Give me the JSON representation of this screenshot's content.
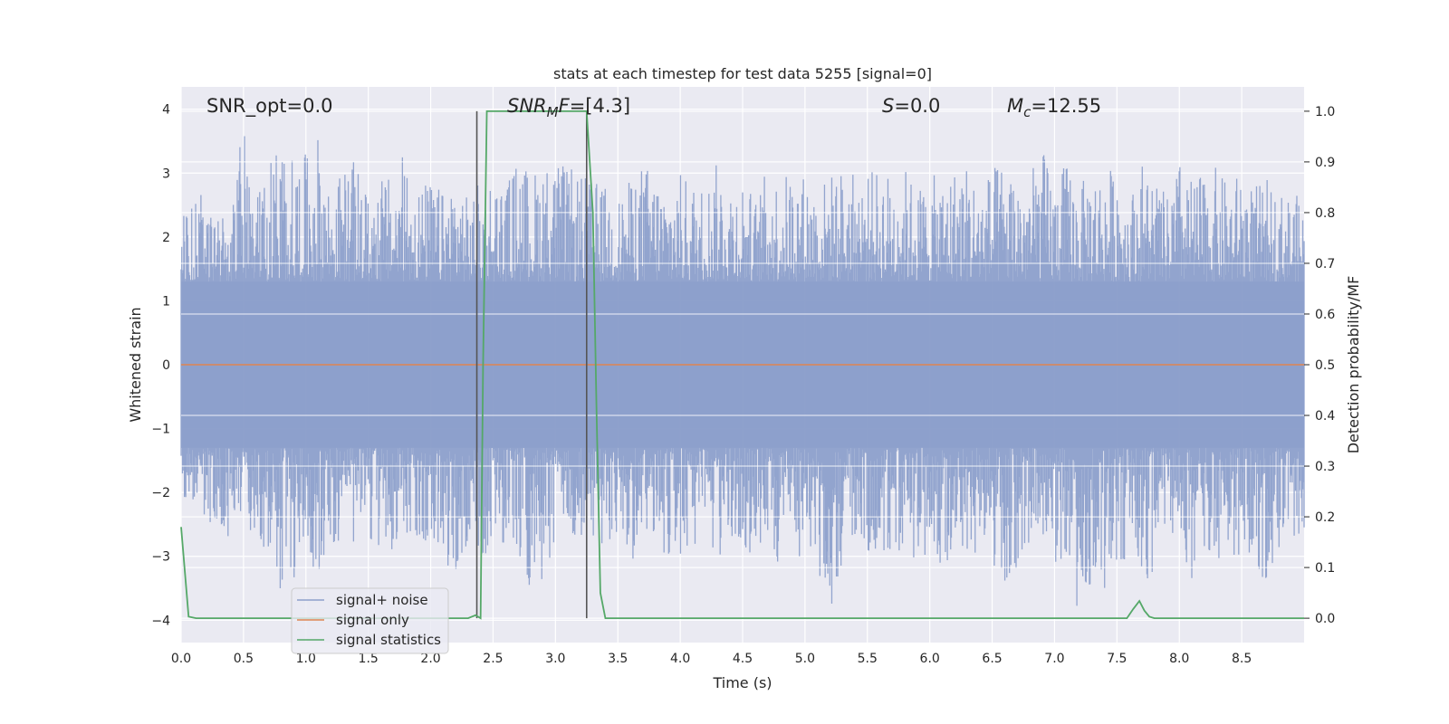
{
  "chart_data": {
    "type": "line",
    "title": "stats at each timestep for test data 5255 [signal=0]",
    "xlabel": "Time (s)",
    "ylabel": "Whitened strain",
    "y2label": "Detection probability/MF",
    "xlim": [
      0,
      9.0
    ],
    "ylim": [
      -4.35,
      4.35
    ],
    "y2lim": [
      -0.048,
      1.048
    ],
    "x_ticks": [
      0.0,
      0.5,
      1.0,
      1.5,
      2.0,
      2.5,
      3.0,
      3.5,
      4.0,
      4.5,
      5.0,
      5.5,
      6.0,
      6.5,
      7.0,
      7.5,
      8.0,
      8.5
    ],
    "x_tick_labels": [
      "0.0",
      "0.5",
      "1.0",
      "1.5",
      "2.0",
      "2.5",
      "3.0",
      "3.5",
      "4.0",
      "4.5",
      "5.0",
      "5.5",
      "6.0",
      "6.5",
      "7.0",
      "7.5",
      "8.0",
      "8.5"
    ],
    "y_ticks": [
      -4,
      -3,
      -2,
      -1,
      0,
      1,
      2,
      3,
      4
    ],
    "y_tick_labels": [
      "−4",
      "−3",
      "−2",
      "−1",
      "0",
      "1",
      "2",
      "3",
      "4"
    ],
    "y2_ticks": [
      0.0,
      0.1,
      0.2,
      0.3,
      0.4,
      0.5,
      0.6,
      0.7,
      0.8,
      0.9,
      1.0
    ],
    "y2_tick_labels": [
      "0.0",
      "0.1",
      "0.2",
      "0.3",
      "0.4",
      "0.5",
      "0.6",
      "0.7",
      "0.8",
      "0.9",
      "1.0"
    ],
    "grid": true,
    "legend_position": "lower-left",
    "annotations": {
      "snr_opt": "SNR_opt=0.0",
      "snr_mf_sym": "SNR",
      "snr_mf_sub": "M",
      "snr_mf_sym2": "F",
      "snr_mf_val": "=[4.3]",
      "s_sym": "S",
      "s_val": "=0.0",
      "mc_sym": "M",
      "mc_sub": "c",
      "mc_val": "=12.55"
    },
    "vlines": [
      2.37,
      3.25
    ],
    "series": [
      {
        "name": "signal+ noise",
        "color": "#8da0cb",
        "envelope": {
          "x": [
            0.0,
            0.05,
            0.1,
            0.15,
            0.2,
            0.3,
            0.4,
            0.5,
            0.6,
            0.7,
            0.8,
            0.9,
            1.0,
            1.1,
            1.2,
            1.3,
            1.4,
            1.5,
            1.6,
            1.7,
            1.8,
            1.9,
            2.0,
            2.1,
            2.2,
            2.3,
            2.4,
            2.5,
            2.6,
            2.7,
            2.8,
            2.9,
            3.0,
            3.1,
            3.2,
            3.3,
            3.4,
            3.5,
            3.6,
            3.7,
            3.8,
            3.9,
            4.0,
            4.1,
            4.2,
            4.3,
            4.4,
            4.5,
            4.6,
            4.7,
            4.8,
            4.9,
            5.0,
            5.1,
            5.2,
            5.3,
            5.4,
            5.5,
            5.6,
            5.7,
            5.8,
            5.9,
            6.0,
            6.1,
            6.2,
            6.3,
            6.4,
            6.5,
            6.6,
            6.7,
            6.8,
            6.9,
            7.0,
            7.1,
            7.2,
            7.3,
            7.4,
            7.5,
            7.6,
            7.7,
            7.8,
            7.9,
            8.0,
            8.1,
            8.2,
            8.3,
            8.4,
            8.5,
            8.6,
            8.7,
            8.8,
            8.9,
            9.0
          ],
          "upper": [
            2.3,
            2.4,
            2.5,
            3.1,
            2.6,
            2.5,
            2.4,
            3.9,
            2.6,
            3.2,
            3.5,
            3.2,
            3.3,
            3.6,
            2.7,
            3.1,
            3.2,
            2.6,
            3.0,
            2.9,
            3.4,
            2.8,
            2.9,
            2.7,
            3.0,
            2.6,
            2.9,
            3.0,
            2.8,
            3.3,
            3.0,
            3.2,
            3.2,
            3.1,
            3.0,
            2.9,
            2.8,
            2.6,
            2.9,
            3.2,
            3.0,
            2.8,
            3.0,
            2.9,
            2.8,
            3.2,
            2.9,
            3.0,
            2.6,
            3.1,
            2.9,
            3.1,
            3.0,
            2.8,
            3.0,
            3.1,
            3.0,
            3.0,
            3.1,
            3.0,
            3.1,
            2.8,
            3.0,
            2.9,
            3.1,
            3.2,
            2.8,
            3.1,
            3.2,
            3.0,
            3.0,
            3.4,
            2.9,
            3.2,
            2.8,
            3.1,
            3.0,
            3.2,
            2.6,
            3.2,
            3.0,
            2.6,
            3.2,
            2.9,
            3.0,
            3.1,
            2.8,
            3.1,
            2.8,
            2.9,
            2.7,
            2.7,
            2.6
          ],
          "lower": [
            -2.0,
            -2.2,
            -2.4,
            -2.3,
            -2.6,
            -2.5,
            -2.8,
            -2.6,
            -2.7,
            -3.1,
            -3.6,
            -3.4,
            -3.0,
            -3.3,
            -2.8,
            -2.9,
            -2.8,
            -2.7,
            -3.0,
            -2.9,
            -2.7,
            -3.2,
            -2.8,
            -3.1,
            -3.4,
            -2.8,
            -3.1,
            -2.8,
            -3.0,
            -3.3,
            -3.5,
            -3.7,
            -2.8,
            -2.6,
            -3.1,
            -2.9,
            -2.8,
            -2.9,
            -3.2,
            -2.7,
            -2.9,
            -3.0,
            -3.0,
            -3.1,
            -2.9,
            -3.2,
            -2.8,
            -3.0,
            -3.1,
            -3.0,
            -3.2,
            -2.9,
            -3.1,
            -3.6,
            -3.9,
            -3.2,
            -2.8,
            -3.0,
            -2.9,
            -3.1,
            -2.8,
            -3.5,
            -3.0,
            -3.2,
            -3.1,
            -3.0,
            -3.2,
            -3.1,
            -3.4,
            -3.2,
            -2.9,
            -3.1,
            -3.1,
            -3.3,
            -4.0,
            -3.4,
            -3.5,
            -3.2,
            -3.0,
            -3.4,
            -3.3,
            -3.1,
            -2.8,
            -3.4,
            -3.2,
            -3.1,
            -3.0,
            -3.0,
            -3.2,
            -3.4,
            -2.9,
            -3.0,
            -2.7
          ]
        }
      },
      {
        "name": "signal only",
        "color": "#dd8452",
        "x": [
          0.0,
          9.0
        ],
        "y": [
          0.0,
          0.0
        ]
      },
      {
        "name": "signal statistics",
        "color": "#55a868",
        "axis": "right",
        "x": [
          0.0,
          0.06,
          0.12,
          0.2,
          0.5,
          1.0,
          1.5,
          2.0,
          2.3,
          2.36,
          2.4,
          2.42,
          2.45,
          2.5,
          3.0,
          3.25,
          3.3,
          3.33,
          3.36,
          3.4,
          4.0,
          5.0,
          6.0,
          7.0,
          7.5,
          7.58,
          7.63,
          7.68,
          7.72,
          7.76,
          7.8,
          8.0,
          8.5,
          9.0
        ],
        "y": [
          0.18,
          0.003,
          0.0,
          0.0,
          0.0,
          0.0,
          0.0,
          0.0,
          0.0,
          0.006,
          0.0,
          0.5,
          1.0,
          1.0,
          1.0,
          1.0,
          0.8,
          0.4,
          0.05,
          0.0,
          0.0,
          0.0,
          0.0,
          0.0,
          0.0,
          0.0,
          0.018,
          0.034,
          0.015,
          0.003,
          0.0,
          0.0,
          0.0,
          0.0
        ]
      }
    ]
  }
}
